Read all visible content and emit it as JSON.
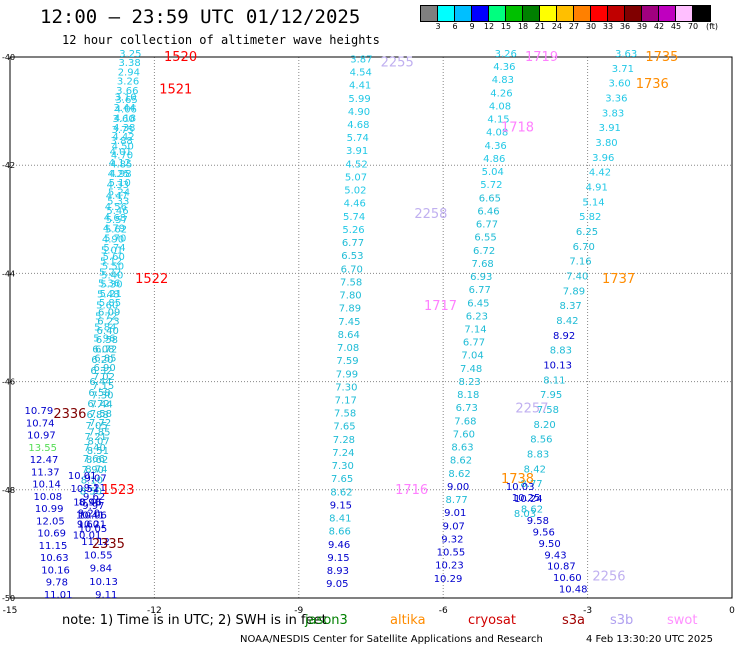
{
  "title": "12:00 — 23:59 UTC 01/12/2025",
  "subtitle": "12 hour collection of altimeter wave heights",
  "legend": {
    "colors": [
      "#7f7f7f",
      "#00ffff",
      "#00bfff",
      "#0000ff",
      "#00ff7f",
      "#00c000",
      "#008000",
      "#ffff00",
      "#ffbf00",
      "#ff8000",
      "#ff0000",
      "#c00000",
      "#800000",
      "#a0007f",
      "#bf00bf",
      "#ffbfff",
      "#000000"
    ],
    "labels": [
      "3",
      "6",
      "9",
      "12",
      "15",
      "18",
      "21",
      "24",
      "27",
      "30",
      "33",
      "36",
      "39",
      "42",
      "45",
      "70"
    ],
    "unit": "(ft)"
  },
  "note": {
    "text": "note:  1) Time is in UTC; 2) SWH is in feet"
  },
  "satellites": [
    {
      "name": "jason3",
      "color": "#008000"
    },
    {
      "name": "altika",
      "color": "#ff8c00"
    },
    {
      "name": "cryosat",
      "color": "#d00000"
    },
    {
      "name": "s3a",
      "color": "#a00000"
    },
    {
      "name": "s3b",
      "color": "#b0a0f0"
    },
    {
      "name": "swot",
      "color": "#ff90ff"
    }
  ],
  "footer": "NOAA/NESDIS Center for Satellite Applications and Research",
  "footer_date": "4 Feb 13:30:20 UTC 2025",
  "chart_data": {
    "type": "scatter",
    "xlim": [
      -15,
      0
    ],
    "ylim": [
      -50,
      -40
    ],
    "xticks": [
      -15,
      -12,
      -9,
      -6,
      -3,
      0
    ],
    "yticks": [
      -40,
      -42,
      -44,
      -46,
      -48,
      -50
    ],
    "grid": true,
    "pass_labels": [
      {
        "text": "1520",
        "color": "#ff0000",
        "x": -11.8,
        "y": -40.0
      },
      {
        "text": "1521",
        "color": "#ff0000",
        "x": -11.9,
        "y": -40.6
      },
      {
        "text": "1522",
        "color": "#ff0000",
        "x": -12.4,
        "y": -44.1
      },
      {
        "text": "1523",
        "color": "#ff0000",
        "x": -13.1,
        "y": -48.0
      },
      {
        "text": "2336",
        "color": "#800000",
        "x": -14.1,
        "y": -46.6
      },
      {
        "text": "2335",
        "color": "#800000",
        "x": -13.3,
        "y": -49.0
      },
      {
        "text": "2255",
        "color": "#c0b0f0",
        "x": -7.3,
        "y": -40.1
      },
      {
        "text": "2258",
        "color": "#c0b0f0",
        "x": -6.6,
        "y": -42.9
      },
      {
        "text": "2257",
        "color": "#c0b0f0",
        "x": -4.5,
        "y": -46.5
      },
      {
        "text": "2256",
        "color": "#c0b0f0",
        "x": -2.9,
        "y": -49.6
      },
      {
        "text": "1719",
        "color": "#ff80ff",
        "x": -4.3,
        "y": -40.0
      },
      {
        "text": "1718",
        "color": "#ff80ff",
        "x": -4.8,
        "y": -41.3
      },
      {
        "text": "1717",
        "color": "#ff80ff",
        "x": -6.4,
        "y": -44.6
      },
      {
        "text": "1716",
        "color": "#ff80ff",
        "x": -7.0,
        "y": -48.0
      },
      {
        "text": "1735",
        "color": "#ff8c00",
        "x": -1.8,
        "y": -40.0
      },
      {
        "text": "1736",
        "color": "#ff8c00",
        "x": -2.0,
        "y": -40.5
      },
      {
        "text": "1737",
        "color": "#ff8c00",
        "x": -2.7,
        "y": -44.1
      },
      {
        "text": "1738",
        "color": "#ff8c00",
        "x": -4.8,
        "y": -47.8
      }
    ],
    "tracks": [
      {
        "name": "1520-1523",
        "x0": -12.5,
        "y0": -40.0,
        "x1": -13.3,
        "y1": -48.7,
        "color": "#00bfff",
        "values": [
          "3.25",
          "3.38",
          "2.94",
          "3.26",
          "3.66",
          "3.65",
          "4.06",
          "4.18",
          "4.38",
          "4.42",
          "4.50",
          "4.70",
          "4.85",
          "4.98",
          "5.10",
          "5.24",
          "5.33",
          "5.46",
          "5.57",
          "5.62",
          "5.70",
          "5.74",
          "5.60",
          "5.50",
          "5.40",
          "5.30",
          "5.21",
          "5.85",
          "6.09",
          "6.23",
          "6.40",
          "6.58",
          "6.72",
          "6.85",
          "6.90",
          "7.02",
          "7.15",
          "7.30",
          "7.44",
          "7.58",
          "7.72",
          "7.85",
          "8.07",
          "8.51",
          "8.62",
          "8.74",
          "9.07",
          "9.21",
          "9.62",
          "9.97",
          "10.06",
          "10.21"
        ]
      },
      {
        "name": "1520-dark",
        "x0": -12.6,
        "y0": -40.8,
        "x1": -13.4,
        "y1": -48.9,
        "color": "#00bfff",
        "values": [
          "3.10",
          "3.44",
          "3.60",
          "3.75",
          "3.88",
          "4.01",
          "4.12",
          "4.25",
          "4.33",
          "4.47",
          "4.56",
          "4.68",
          "4.79",
          "4.90",
          "5.01",
          "5.12",
          "5.22",
          "5.36",
          "5.48",
          "5.60",
          "5.72",
          "5.84",
          "5.96",
          "6.08",
          "6.20",
          "6.32",
          "6.44",
          "6.58",
          "6.72",
          "6.88",
          "7.05",
          "7.21",
          "7.40",
          "7.66",
          "7.90",
          "8.10",
          "8.50",
          "8.90",
          "9.20",
          "9.60",
          "10.01"
        ]
      },
      {
        "name": "2335-2336",
        "x0": -14.4,
        "y0": -46.6,
        "x1": -14.0,
        "y1": -50.0,
        "color": "#0000cd",
        "values": [
          "10.79",
          "10.74",
          "10.97",
          "13.55",
          "12.47",
          "11.37",
          "10.14",
          "10.08",
          "10.99",
          "12.05",
          "10.69",
          "11.15",
          "10.63",
          "10.16",
          "9.78",
          "11.01"
        ]
      },
      {
        "name": "2335-b",
        "x0": -13.5,
        "y0": -47.8,
        "x1": -13.0,
        "y1": -50.0,
        "color": "#0000cd",
        "values": [
          "10.01",
          "10.51",
          "10.46",
          "10.41",
          "10.05",
          "11.12",
          "10.55",
          "9.84",
          "10.13",
          "9.11"
        ]
      },
      {
        "name": "2255-2256",
        "x0": -7.7,
        "y0": -40.1,
        "x1": -8.2,
        "y1": -49.8,
        "color": "#00bfff",
        "values": [
          "3.87",
          "4.54",
          "4.41",
          "5.99",
          "4.90",
          "4.68",
          "5.74",
          "3.91",
          "4.52",
          "5.07",
          "5.02",
          "4.46",
          "5.74",
          "5.26",
          "6.77",
          "6.53",
          "6.70",
          "7.58",
          "7.80",
          "7.89",
          "7.45",
          "8.64",
          "7.08",
          "7.59",
          "7.99",
          "7.30",
          "7.17",
          "7.58",
          "7.65",
          "7.28",
          "7.24",
          "7.30",
          "7.65",
          "8.62",
          "9.15",
          "8.41",
          "8.66",
          "9.46",
          "9.15",
          "8.93",
          "9.05"
        ]
      },
      {
        "name": "1719-1716",
        "x0": -4.7,
        "y0": -40.0,
        "x1": -5.9,
        "y1": -49.7,
        "color": "#00bfff",
        "values": [
          "3.26",
          "4.36",
          "4.83",
          "4.26",
          "4.08",
          "4.15",
          "4.08",
          "4.36",
          "4.86",
          "5.04",
          "5.72",
          "6.65",
          "6.46",
          "6.77",
          "6.55",
          "6.72",
          "7.68",
          "6.93",
          "6.77",
          "6.45",
          "6.23",
          "7.14",
          "6.77",
          "7.04",
          "7.48",
          "8.23",
          "8.18",
          "6.73",
          "7.68",
          "7.60",
          "8.63",
          "8.62",
          "8.62",
          "9.00",
          "8.77",
          "9.01",
          "9.07",
          "9.32",
          "10.55",
          "10.23",
          "10.29"
        ]
      },
      {
        "name": "1735-1738",
        "x0": -2.2,
        "y0": -40.0,
        "x1": -4.3,
        "y1": -48.5,
        "color": "#00bfff",
        "values": [
          "3.63",
          "3.71",
          "3.60",
          "3.36",
          "3.83",
          "3.91",
          "3.80",
          "3.96",
          "4.42",
          "4.91",
          "5.14",
          "5.82",
          "6.25",
          "6.70",
          "7.16",
          "7.40",
          "7.89",
          "8.37",
          "8.42",
          "8.92",
          "8.83",
          "10.13",
          "8.11",
          "7.95",
          "7.58",
          "8.20",
          "8.56",
          "8.83",
          "8.42",
          "8.77",
          "10.24",
          "8.03"
        ]
      },
      {
        "name": "1738-2256",
        "x0": -4.4,
        "y0": -48.0,
        "x1": -3.3,
        "y1": -49.9,
        "color": "#0000cd",
        "values": [
          "10.03",
          "10.25",
          "8.62",
          "9.58",
          "9.56",
          "9.50",
          "9.43",
          "10.87",
          "10.60",
          "10.48"
        ]
      }
    ]
  }
}
